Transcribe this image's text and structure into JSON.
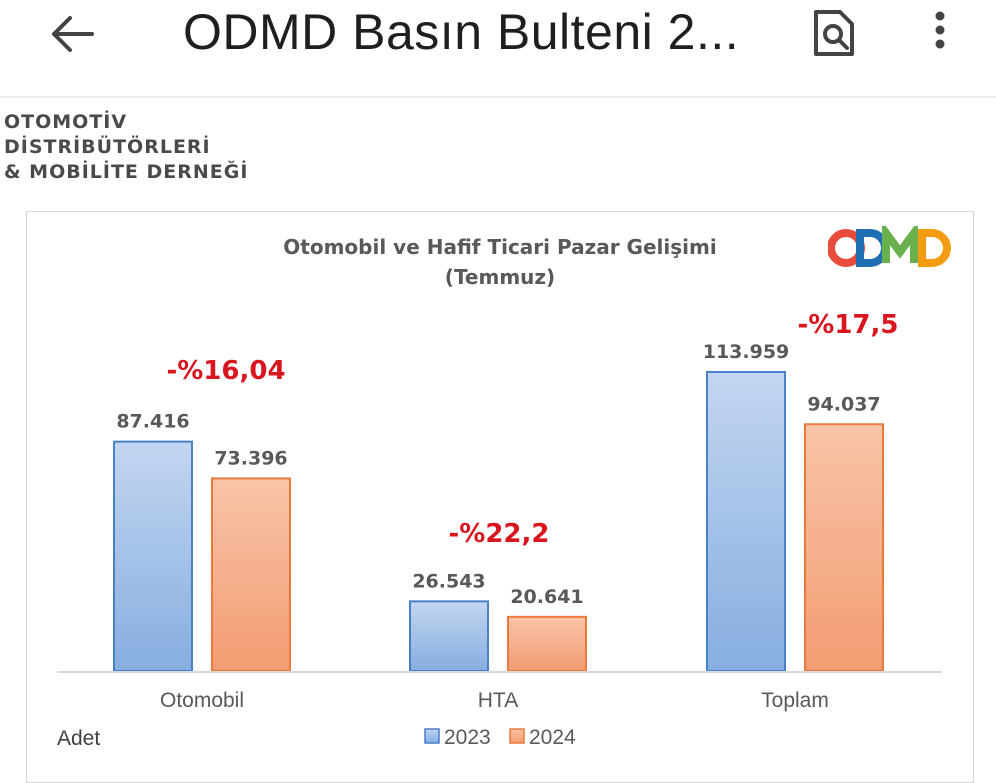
{
  "header": {
    "title": "ODMD Basın Bulteni 2...",
    "back_icon": "arrow-left-icon",
    "search_icon": "document-search-icon",
    "more_icon": "more-vert-icon"
  },
  "organization": {
    "lines": [
      "OTOMOTİV",
      "DİSTRİBÜTÖRLERİ",
      "& MOBİLİTE DERNEĞİ"
    ]
  },
  "logo": {
    "letters": [
      "O",
      "D",
      "M",
      "D"
    ],
    "colors": [
      "#e84c3d",
      "#1f6fb5",
      "#6ab04c",
      "#f39c12"
    ]
  },
  "chart_data": {
    "type": "bar",
    "title": "Otomobil ve Hafif Ticari Pazar Gelişimi",
    "subtitle": "(Temmuz)",
    "categories": [
      "Otomobil",
      "HTA",
      "Toplam"
    ],
    "series": [
      {
        "name": "2023",
        "values": [
          87416,
          26543,
          113959
        ],
        "labels": [
          "87.416",
          "26.543",
          "113.959"
        ],
        "color": "#8fb3e0"
      },
      {
        "name": "2024",
        "values": [
          73396,
          20641,
          94037
        ],
        "labels": [
          "73.396",
          "20.641",
          "94.037"
        ],
        "color": "#f4a27c"
      }
    ],
    "change_labels": [
      "-%16,04",
      "-%22,2",
      "-%17,5"
    ],
    "change_color": "#d9161f",
    "ylabel": "Adet",
    "ylim": [
      0,
      115000
    ],
    "grid": false,
    "legend_position": "bottom"
  }
}
